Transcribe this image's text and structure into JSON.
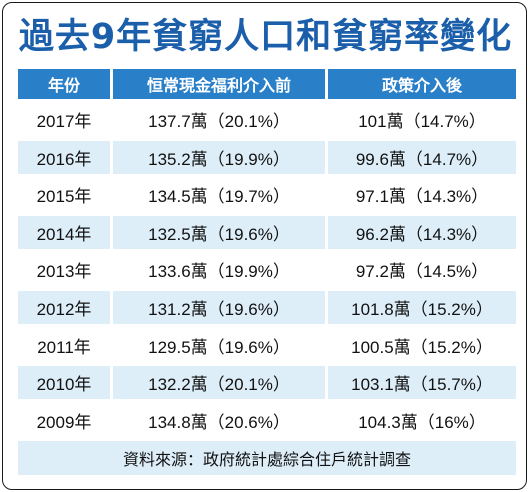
{
  "title": "過去9年貧窮人口和貧窮率變化",
  "columns": [
    "年份",
    "恒常現金福利介入前",
    "政策介入後"
  ],
  "rows": [
    {
      "year": "2017年",
      "pre": "137.7萬（20.1%）",
      "post": "101萬（14.7%）"
    },
    {
      "year": "2016年",
      "pre": "135.2萬（19.9%）",
      "post": "99.6萬（14.7%）"
    },
    {
      "year": "2015年",
      "pre": "134.5萬（19.7%）",
      "post": "97.1萬（14.3%）"
    },
    {
      "year": "2014年",
      "pre": "132.5萬（19.6%）",
      "post": "96.2萬（14.3%）"
    },
    {
      "year": "2013年",
      "pre": "133.6萬（19.9%）",
      "post": "97.2萬（14.5%）"
    },
    {
      "year": "2012年",
      "pre": "131.2萬（19.6%）",
      "post": "101.8萬（15.2%）"
    },
    {
      "year": "2011年",
      "pre": "129.5萬（19.6%）",
      "post": "100.5萬（15.2%）"
    },
    {
      "year": "2010年",
      "pre": "132.2萬（20.1%）",
      "post": "103.1萬（15.7%）"
    },
    {
      "year": "2009年",
      "pre": "134.8萬（20.6%）",
      "post": "104.3萬（16%）"
    }
  ],
  "source": "資料來源：政府統計處綜合住戶統計調查",
  "colors": {
    "title": "#1b5fab",
    "header_bg": "#2a7fc9",
    "stripe_bg": "#ddeef9"
  }
}
